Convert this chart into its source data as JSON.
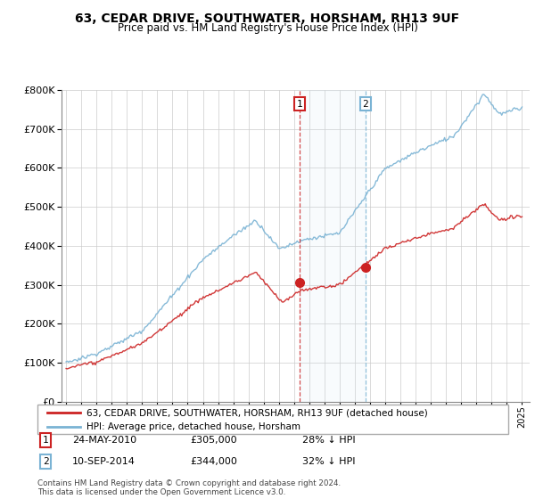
{
  "title": "63, CEDAR DRIVE, SOUTHWATER, HORSHAM, RH13 9UF",
  "subtitle": "Price paid vs. HM Land Registry's House Price Index (HPI)",
  "legend_line1": "63, CEDAR DRIVE, SOUTHWATER, HORSHAM, RH13 9UF (detached house)",
  "legend_line2": "HPI: Average price, detached house, Horsham",
  "transaction1_date": "24-MAY-2010",
  "transaction1_price": "£305,000",
  "transaction1_hpi": "28% ↓ HPI",
  "transaction2_date": "10-SEP-2014",
  "transaction2_price": "£344,000",
  "transaction2_hpi": "32% ↓ HPI",
  "footer": "Contains HM Land Registry data © Crown copyright and database right 2024.\nThis data is licensed under the Open Government Licence v3.0.",
  "hpi_color": "#7ab3d4",
  "price_color": "#cc2222",
  "vline1_color": "#cc2222",
  "vline2_color": "#7ab3d4",
  "span_color": "#d0e8f5",
  "ylim_min": 0,
  "ylim_max": 800000,
  "yticks": [
    0,
    100000,
    200000,
    300000,
    400000,
    500000,
    600000,
    700000,
    800000
  ],
  "transaction1_x": 2010.38,
  "transaction2_x": 2014.69,
  "transaction1_price_val": 305000,
  "transaction2_price_val": 344000
}
